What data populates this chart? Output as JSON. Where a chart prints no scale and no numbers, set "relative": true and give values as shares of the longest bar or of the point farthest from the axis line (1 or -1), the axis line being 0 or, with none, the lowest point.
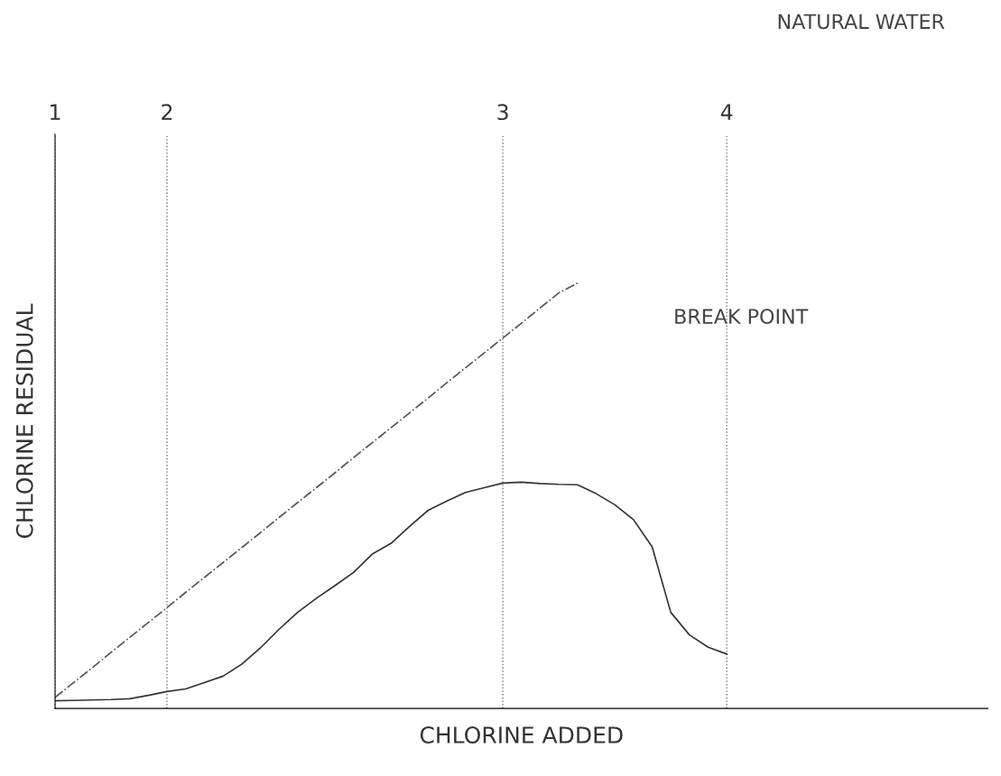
{
  "chart_data": {
    "type": "line",
    "title": "NATURAL WATER",
    "xlabel": "CHLORINE ADDED",
    "ylabel": "CHLORINE RESIDUAL",
    "relative": true,
    "tick_labels": "x",
    "grid": "x",
    "categories": [
      "1",
      null,
      null,
      null,
      null,
      null,
      "2",
      null,
      null,
      null,
      null,
      null,
      null,
      null,
      null,
      null,
      null,
      null,
      null,
      null,
      null,
      null,
      null,
      null,
      "3",
      null,
      null,
      null,
      null,
      null,
      null,
      null,
      null,
      null,
      null,
      null,
      "4",
      null,
      null,
      null,
      null,
      null,
      null,
      null,
      null,
      null,
      null,
      null,
      null,
      null,
      null
    ],
    "annotations": [
      "BREAK POINT"
    ],
    "series": [
      {
        "color": "#555555",
        "line_style": "dashed",
        "values": [
          0.026,
          0.061,
          0.096,
          0.132,
          0.167,
          0.202,
          0.237,
          0.273,
          0.308,
          0.343,
          0.378,
          0.413,
          0.449,
          0.484,
          0.519,
          0.554,
          0.59,
          0.625,
          0.66,
          0.695,
          0.73,
          0.766,
          0.801,
          0.836,
          0.871,
          0.906,
          0.942,
          0.977,
          1.0,
          null,
          null,
          null,
          null,
          null,
          null,
          null,
          null,
          null,
          null,
          null,
          null,
          null,
          null,
          null,
          null,
          null,
          null,
          null,
          null,
          null,
          null
        ]
      },
      {
        "color": "#333333",
        "line_style": "solid",
        "values": [
          0.018,
          0.019,
          0.02,
          0.021,
          0.023,
          0.031,
          0.04,
          0.046,
          0.061,
          0.076,
          0.104,
          0.142,
          0.186,
          0.226,
          0.259,
          0.289,
          0.32,
          0.363,
          0.388,
          0.428,
          0.466,
          0.488,
          0.508,
          0.519,
          0.53,
          0.532,
          0.529,
          0.527,
          0.526,
          0.505,
          0.479,
          0.444,
          0.38,
          0.226,
          0.173,
          0.144,
          0.128,
          null,
          null,
          null,
          null,
          null,
          null,
          null,
          null,
          null,
          null,
          null,
          null,
          null,
          null
        ]
      }
    ]
  }
}
